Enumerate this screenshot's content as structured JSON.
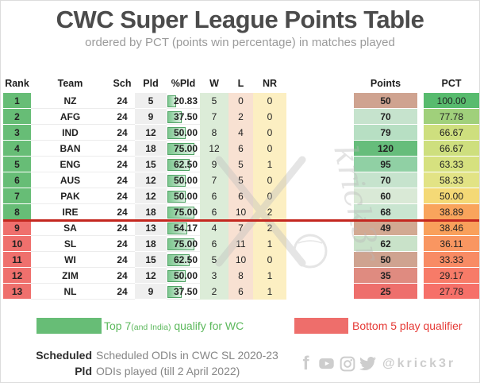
{
  "title": "CWC Super League Points Table",
  "subtitle": "ordered by PCT (points win percentage) in matches played",
  "chart_data": {
    "type": "table",
    "title": "CWC Super League Points Table",
    "subtitle": "ordered by PCT (points win percentage) in matches played",
    "columns": [
      "Rank",
      "Team",
      "Sch",
      "Pld",
      "%Pld",
      "W",
      "L",
      "NR",
      "Points",
      "PCT"
    ],
    "rows": [
      {
        "rank": "1",
        "team": "NZ",
        "sch": "24",
        "pld": "5",
        "pld_pct": "20.83",
        "w": "5",
        "l": "0",
        "nr": "0",
        "points": "50",
        "pct": "100.00"
      },
      {
        "rank": "2",
        "team": "AFG",
        "sch": "24",
        "pld": "9",
        "pld_pct": "37.50",
        "w": "7",
        "l": "2",
        "nr": "0",
        "points": "70",
        "pct": "77.78"
      },
      {
        "rank": "3",
        "team": "IND",
        "sch": "24",
        "pld": "12",
        "pld_pct": "50.00",
        "w": "8",
        "l": "4",
        "nr": "0",
        "points": "79",
        "pct": "66.67"
      },
      {
        "rank": "4",
        "team": "BAN",
        "sch": "24",
        "pld": "18",
        "pld_pct": "75.00",
        "w": "12",
        "l": "6",
        "nr": "0",
        "points": "120",
        "pct": "66.67"
      },
      {
        "rank": "5",
        "team": "ENG",
        "sch": "24",
        "pld": "15",
        "pld_pct": "62.50",
        "w": "9",
        "l": "5",
        "nr": "1",
        "points": "95",
        "pct": "63.33"
      },
      {
        "rank": "6",
        "team": "AUS",
        "sch": "24",
        "pld": "12",
        "pld_pct": "50.00",
        "w": "7",
        "l": "5",
        "nr": "0",
        "points": "70",
        "pct": "58.33"
      },
      {
        "rank": "7",
        "team": "PAK",
        "sch": "24",
        "pld": "12",
        "pld_pct": "50.00",
        "w": "6",
        "l": "6",
        "nr": "0",
        "points": "60",
        "pct": "50.00"
      },
      {
        "rank": "8",
        "team": "IRE",
        "sch": "24",
        "pld": "18",
        "pld_pct": "75.00",
        "w": "6",
        "l": "10",
        "nr": "2",
        "points": "68",
        "pct": "38.89"
      },
      {
        "rank": "9",
        "team": "SA",
        "sch": "24",
        "pld": "13",
        "pld_pct": "54.17",
        "w": "4",
        "l": "7",
        "nr": "2",
        "points": "49",
        "pct": "38.46"
      },
      {
        "rank": "10",
        "team": "SL",
        "sch": "24",
        "pld": "18",
        "pld_pct": "75.00",
        "w": "6",
        "l": "11",
        "nr": "1",
        "points": "62",
        "pct": "36.11"
      },
      {
        "rank": "11",
        "team": "WI",
        "sch": "24",
        "pld": "15",
        "pld_pct": "62.50",
        "w": "5",
        "l": "10",
        "nr": "0",
        "points": "50",
        "pct": "33.33"
      },
      {
        "rank": "12",
        "team": "ZIM",
        "sch": "24",
        "pld": "12",
        "pld_pct": "50.00",
        "w": "3",
        "l": "8",
        "nr": "1",
        "points": "35",
        "pct": "29.17"
      },
      {
        "rank": "13",
        "team": "NL",
        "sch": "24",
        "pld": "9",
        "pld_pct": "37.50",
        "w": "2",
        "l": "6",
        "nr": "1",
        "points": "25",
        "pct": "27.78"
      }
    ],
    "qualify_cutoff_after_rank": 8
  },
  "table": {
    "headers": {
      "rank": "Rank",
      "team": "Team",
      "sch": "Sch",
      "pld": "Pld",
      "pldpct": "%Pld",
      "w": "W",
      "l": "L",
      "nr": "NR",
      "points": "Points",
      "pct": "PCT"
    },
    "column_bg": {
      "pld": "#efefef",
      "w": "#dcecd8",
      "l": "#f8e1d2",
      "nr": "#fcefc2"
    },
    "row_styles": [
      {
        "rank_bg": "#67bd76",
        "points_bg": "#cfa390",
        "pct_bg": "#58bb6e"
      },
      {
        "rank_bg": "#67bd76",
        "points_bg": "#c6e3cd",
        "pct_bg": "#a0d07b"
      },
      {
        "rank_bg": "#67bd76",
        "points_bg": "#b7dfc3",
        "pct_bg": "#cedf7e"
      },
      {
        "rank_bg": "#67bd76",
        "points_bg": "#66bd7b",
        "pct_bg": "#cedf7e"
      },
      {
        "rank_bg": "#67bd76",
        "points_bg": "#90d0a4",
        "pct_bg": "#d6e17f"
      },
      {
        "rank_bg": "#67bd76",
        "points_bg": "#c6e3cd",
        "pct_bg": "#e2e385"
      },
      {
        "rank_bg": "#67bd76",
        "points_bg": "#d9e9d6",
        "pct_bg": "#f4d976"
      },
      {
        "rank_bg": "#67bd76",
        "points_bg": "#c9e5d0",
        "pct_bg": "#f9a45c"
      },
      {
        "rank_bg": "#ef706d",
        "points_bg": "#d2a992",
        "pct_bg": "#f9a05b"
      },
      {
        "rank_bg": "#ef706d",
        "points_bg": "#c9e2c9",
        "pct_bg": "#f99661"
      },
      {
        "rank_bg": "#ef706d",
        "points_bg": "#cfa390",
        "pct_bg": "#f88b64"
      },
      {
        "rank_bg": "#ef706d",
        "points_bg": "#df8b80",
        "pct_bg": "#f77b68"
      },
      {
        "rank_bg": "#ef706d",
        "points_bg": "#ee6f6c",
        "pct_bg": "#f67069"
      }
    ],
    "cutoff_line_color": "#c4271f"
  },
  "legend": {
    "green": {
      "swatch_color": "#67bd76",
      "text_color": "#5cb85c",
      "prefix": "Top 7",
      "small": "(and India)",
      "suffix": " qualify for WC"
    },
    "red": {
      "swatch_color": "#ee6e6b",
      "text_color": "#e53935",
      "label": "Bottom 5 play qualifier"
    }
  },
  "footnotes": [
    {
      "label": "Scheduled",
      "desc": "Scheduled ODIs in CWC SL 2020-23"
    },
    {
      "label": "Pld",
      "desc": "ODIs played (till 2 April 2022)"
    }
  ],
  "social": {
    "handle": "@krick3r",
    "icon_color": "#cdcdcd"
  },
  "watermark": {
    "text": "krick3r"
  }
}
